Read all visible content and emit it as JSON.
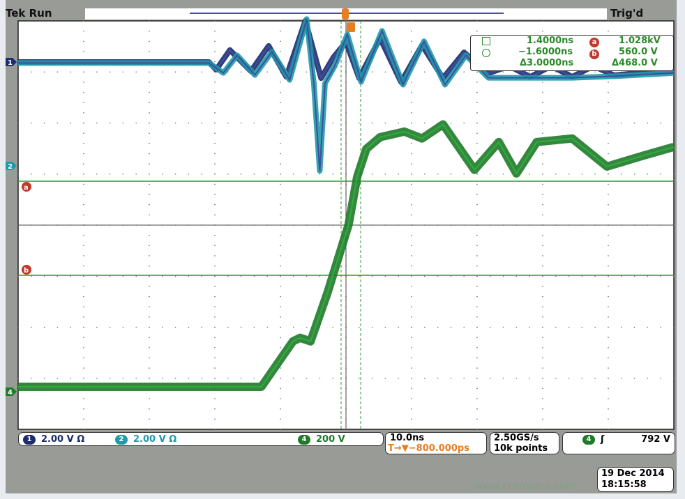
{
  "header": {
    "brand": "Tek",
    "state": "Run",
    "trigger_status": "Trig'd"
  },
  "cursors": {
    "t1": "1.4000ns",
    "t2": "−1.6000ns",
    "dt": "Δ3.0000ns",
    "va": "1.028kV",
    "vb": "560.0 V",
    "dv": "Δ468.0 V",
    "a_label": "a",
    "b_label": "b"
  },
  "channels": [
    {
      "id": "1",
      "scale": "2.00 V",
      "coupling": "Ω",
      "color": "#1c2a6e"
    },
    {
      "id": "2",
      "scale": "2.00 V",
      "coupling": "Ω",
      "color": "#1e9aa8"
    },
    {
      "id": "4",
      "scale": "200 V",
      "color": "#1f7a2a"
    }
  ],
  "timebase": {
    "scale": "10.0ns",
    "delay": "T→▼−800.000ps"
  },
  "acquisition": {
    "rate": "2.50GS/s",
    "record": "10k points"
  },
  "trigger": {
    "source": "4",
    "slope": "rising",
    "slope_glyph": "ʃ",
    "level": "792 V"
  },
  "datetime": {
    "date": "19 Dec 2014",
    "time": "18:15:58"
  },
  "watermark": "www.cntronics.com",
  "chart_data": {
    "type": "line",
    "grid": true,
    "x_divisions": 10,
    "y_divisions": 8,
    "xlabel": "",
    "ylabel": "",
    "x_unit": "ns",
    "xlim": [
      -50,
      50
    ],
    "series": [
      {
        "channel": "1",
        "color": "#1c2a6e",
        "volts_per_div": 2,
        "x": [
          -50,
          -20.9,
          -19.8,
          -17.7,
          -14.5,
          -11.8,
          -9.1,
          -6.2,
          -3.8,
          -1.9,
          0,
          2,
          5.2,
          8.4,
          11.6,
          14.8,
          18,
          21.7,
          24.9,
          28.1,
          31.3,
          34.5,
          37.7,
          40.9,
          50
        ],
        "y": [
          0,
          0,
          -0.3,
          0.47,
          -0.36,
          0.63,
          -0.58,
          1.62,
          -0.63,
          0.19,
          0.79,
          -0.63,
          0.93,
          -0.79,
          0.66,
          -0.63,
          0.38,
          -0.44,
          -0.16,
          -0.58,
          -0.16,
          -0.58,
          -0.16,
          -0.52,
          -0.3
        ]
      },
      {
        "channel": "2",
        "color": "#1e9aa8",
        "volts_per_div": 2,
        "x": [
          -50,
          -20.9,
          -18.7,
          -16.6,
          -13.9,
          -11.3,
          -8.6,
          -6,
          -4.9,
          -4.0,
          -3.2,
          -1.7,
          0.2,
          2.3,
          5.5,
          8.7,
          11.9,
          15.1,
          18.3,
          21.7,
          28.1,
          34.5,
          40.9,
          50
        ],
        "y": [
          4.03,
          4.03,
          3.64,
          4.33,
          3.56,
          4.47,
          3.37,
          5.75,
          3.23,
          -0.19,
          3.23,
          3.92,
          5.15,
          3.29,
          5.29,
          3.18,
          4.88,
          3.18,
          4.33,
          3.45,
          3.45,
          3.45,
          3.51,
          3.64
        ]
      },
      {
        "channel": "4",
        "color": "#1f7a2a",
        "volts_per_div": 200,
        "x": [
          -50,
          -12.9,
          -8.1,
          -7.0,
          -5.4,
          -2.8,
          0.4,
          1.7,
          3.1,
          5.2,
          8.9,
          11.6,
          14.8,
          19.6,
          23.3,
          26.0,
          29.1,
          34.5,
          39.8,
          45.1,
          50
        ],
        "y": [
          19,
          19,
          197,
          211,
          197,
          389,
          655,
          841,
          951,
          997,
          1019,
          992,
          1047,
          869,
          978,
          855,
          978,
          992,
          882,
          923,
          959
        ]
      }
    ]
  }
}
